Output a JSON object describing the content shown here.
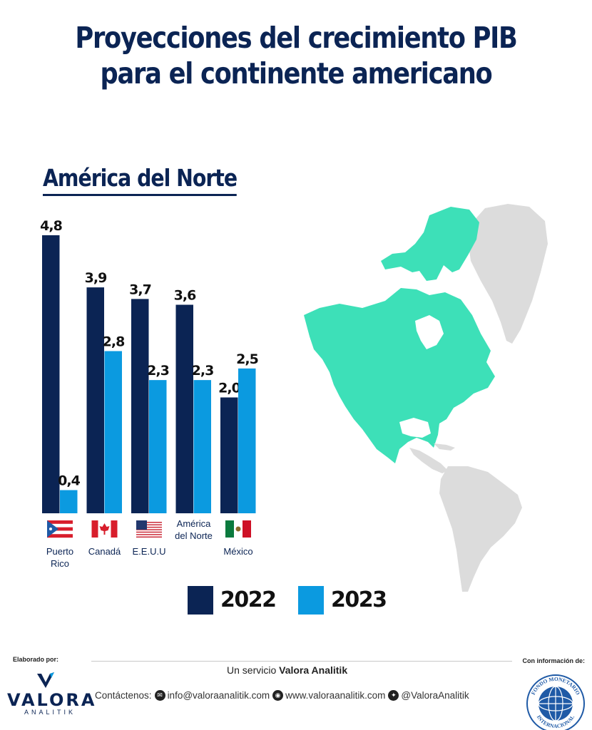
{
  "title": {
    "line1": "Proyecciones del crecimiento PIB",
    "line2": "para el continente americano"
  },
  "subtitle": "América del Norte",
  "chart_data": {
    "type": "bar",
    "categories": [
      "Puerto Rico",
      "Canadá",
      "E.E.U.U",
      "América del Norte",
      "México"
    ],
    "category_lines": [
      [
        "Puerto",
        "Rico"
      ],
      [
        "Canadá"
      ],
      [
        "E.E.U.U"
      ],
      [
        "América",
        "del Norte"
      ],
      [
        "México"
      ]
    ],
    "series": [
      {
        "name": "2022",
        "values": [
          4.8,
          3.9,
          3.7,
          3.6,
          2.0
        ],
        "labels": [
          "4,8",
          "3,9",
          "3,7",
          "3,6",
          "2,0"
        ],
        "color": "#0b2454"
      },
      {
        "name": "2023",
        "values": [
          0.4,
          2.8,
          2.3,
          2.3,
          2.5
        ],
        "labels": [
          "0,4",
          "2,8",
          "2,3",
          "2,3",
          "2,5"
        ],
        "color": "#0b9ae0"
      }
    ],
    "flags": [
      "puerto-rico-flag",
      "canada-flag",
      "usa-flag",
      "",
      "mexico-flag"
    ],
    "ylim": [
      0,
      4.8
    ],
    "grid": false,
    "legend_position": "bottom",
    "title": "América del Norte"
  },
  "map": {
    "highlight_color": "#3de0b8",
    "other_color": "#dcdcdc",
    "highlighted_region": "América del Norte"
  },
  "footer": {
    "elaborado": "Elaborado por:",
    "con_info": "Con información de:",
    "servicio_prefix": "Un servicio ",
    "servicio_brand": "Valora Analitik",
    "contact_label": "Contáctenos:",
    "email": "info@valoraanalitik.com",
    "website": "www.valoraanalitik.com",
    "twitter": "@ValoraAnalitik",
    "logo_name": "VALORA",
    "logo_sub": "ANALITIK",
    "imf_top": "FONDO MONETARIO",
    "imf_bottom": "INTERNACIONAL"
  }
}
